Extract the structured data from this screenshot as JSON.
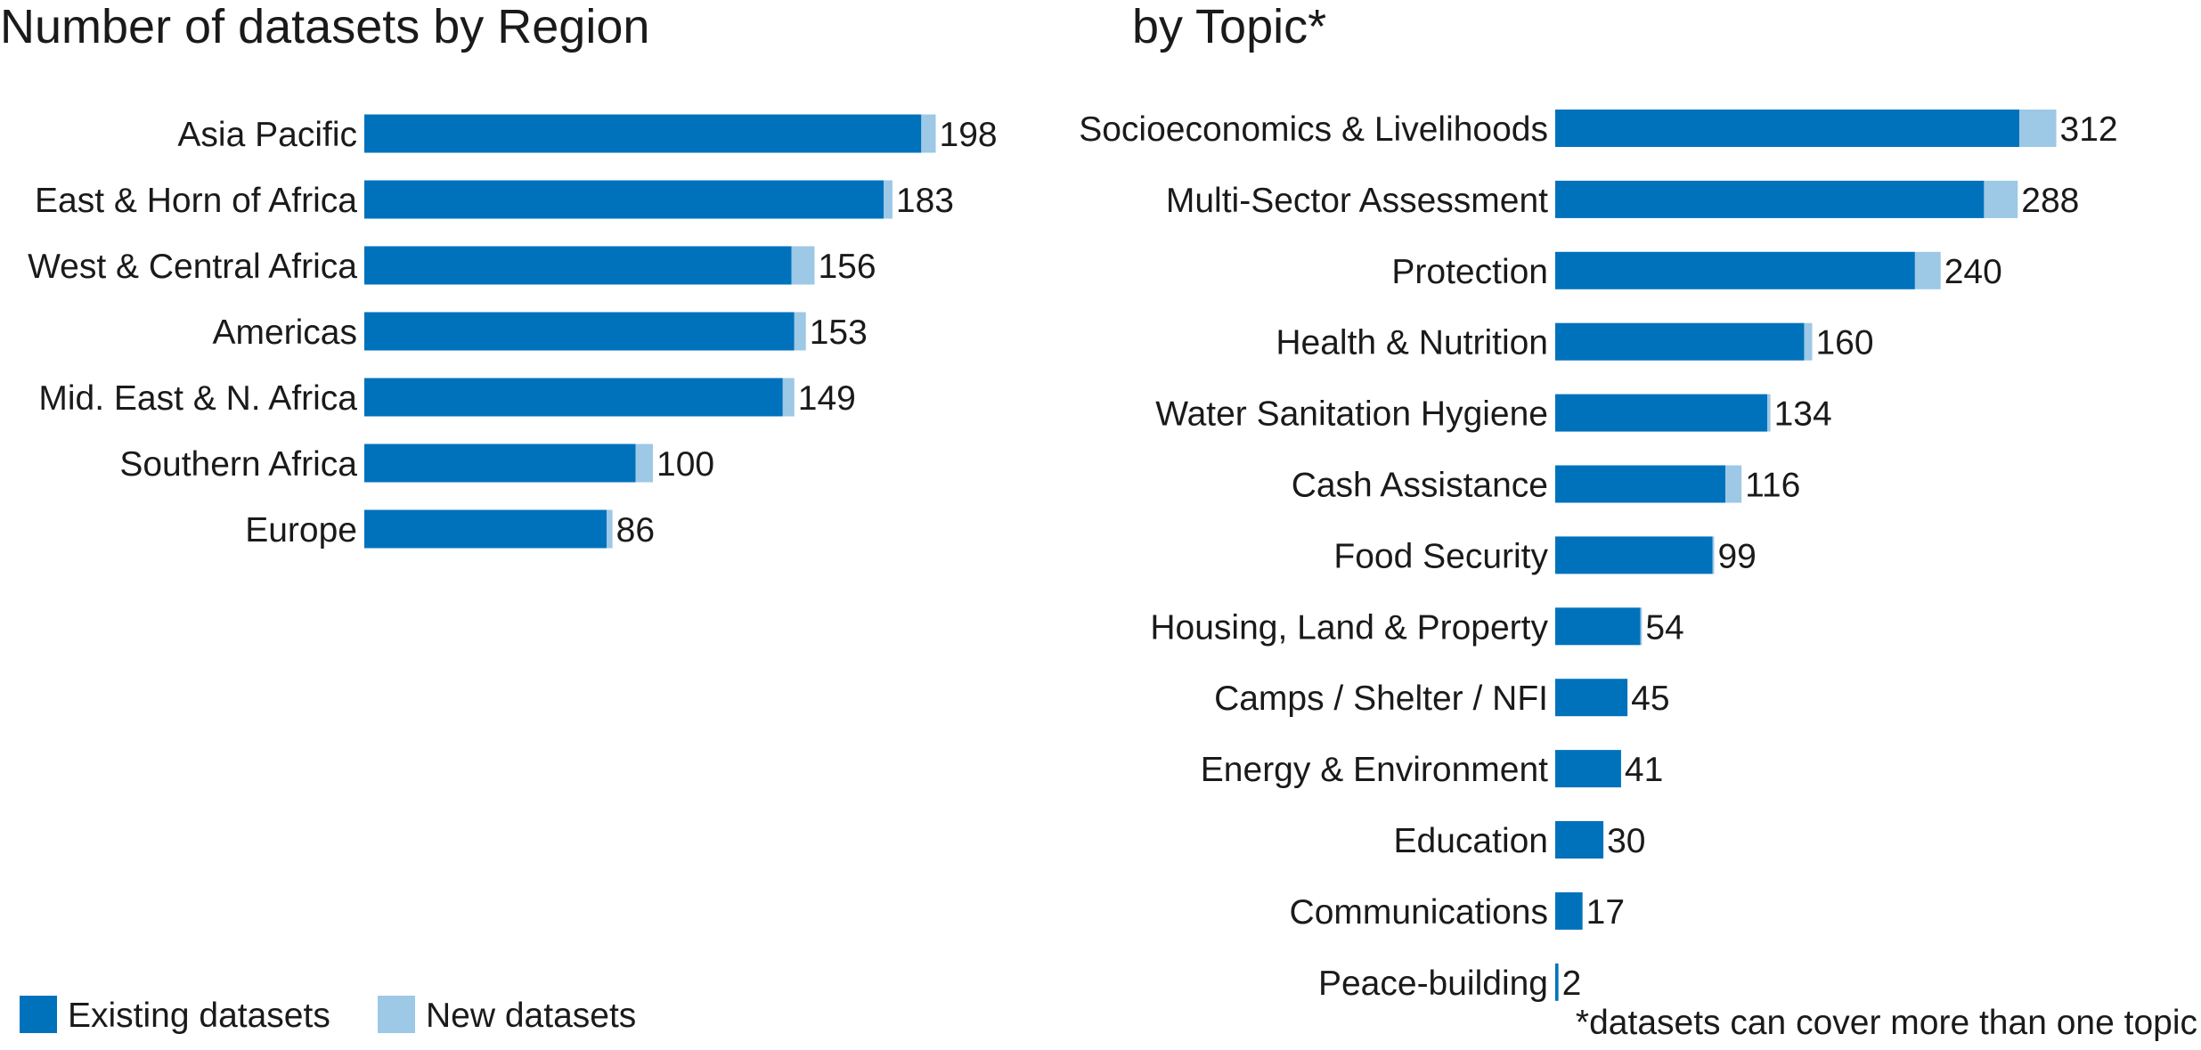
{
  "colors": {
    "existing": "#0072bc",
    "new": "#9dc8e6"
  },
  "legend": {
    "existing_label": "Existing datasets",
    "new_label": "New datasets"
  },
  "footnote": "*datasets can cover more than one topic",
  "chart_data": [
    {
      "type": "bar",
      "orientation": "horizontal",
      "stacked": true,
      "title": "Number of datasets by Region",
      "categories": [
        "Asia Pacific",
        "East & Horn of Africa",
        "West & Central Africa",
        "Americas",
        "Mid. East & N. Africa",
        "Southern Africa",
        "Europe"
      ],
      "series": [
        {
          "name": "Existing datasets",
          "values": [
            193,
            180,
            148,
            149,
            145,
            94,
            84
          ]
        },
        {
          "name": "New datasets",
          "values": [
            5,
            3,
            8,
            4,
            4,
            6,
            2
          ]
        }
      ],
      "totals": [
        "198",
        "183",
        "156",
        "153",
        "149",
        "100",
        "86"
      ]
    },
    {
      "type": "bar",
      "orientation": "horizontal",
      "stacked": true,
      "title": "by Topic*",
      "categories": [
        "Socioeconomics & Livelihoods",
        "Multi-Sector Assessment",
        "Protection",
        "Health & Nutrition",
        "Water Sanitation Hygiene",
        "Cash Assistance",
        "Food Security",
        "Housing, Land & Property",
        "Camps / Shelter / NFI",
        "Energy & Environment",
        "Education",
        "Communications",
        "Peace-building"
      ],
      "series": [
        {
          "name": "Existing datasets",
          "values": [
            289,
            267,
            224,
            155,
            132,
            106,
            98,
            53,
            45,
            41,
            30,
            17,
            2
          ]
        },
        {
          "name": "New datasets",
          "values": [
            23,
            21,
            16,
            5,
            2,
            10,
            1,
            1,
            0,
            0,
            0,
            0,
            0
          ]
        }
      ],
      "totals": [
        "312",
        "288",
        "240",
        "160",
        "134",
        "116",
        "99",
        "54",
        "45",
        "41",
        "30",
        "17",
        "2"
      ]
    }
  ]
}
